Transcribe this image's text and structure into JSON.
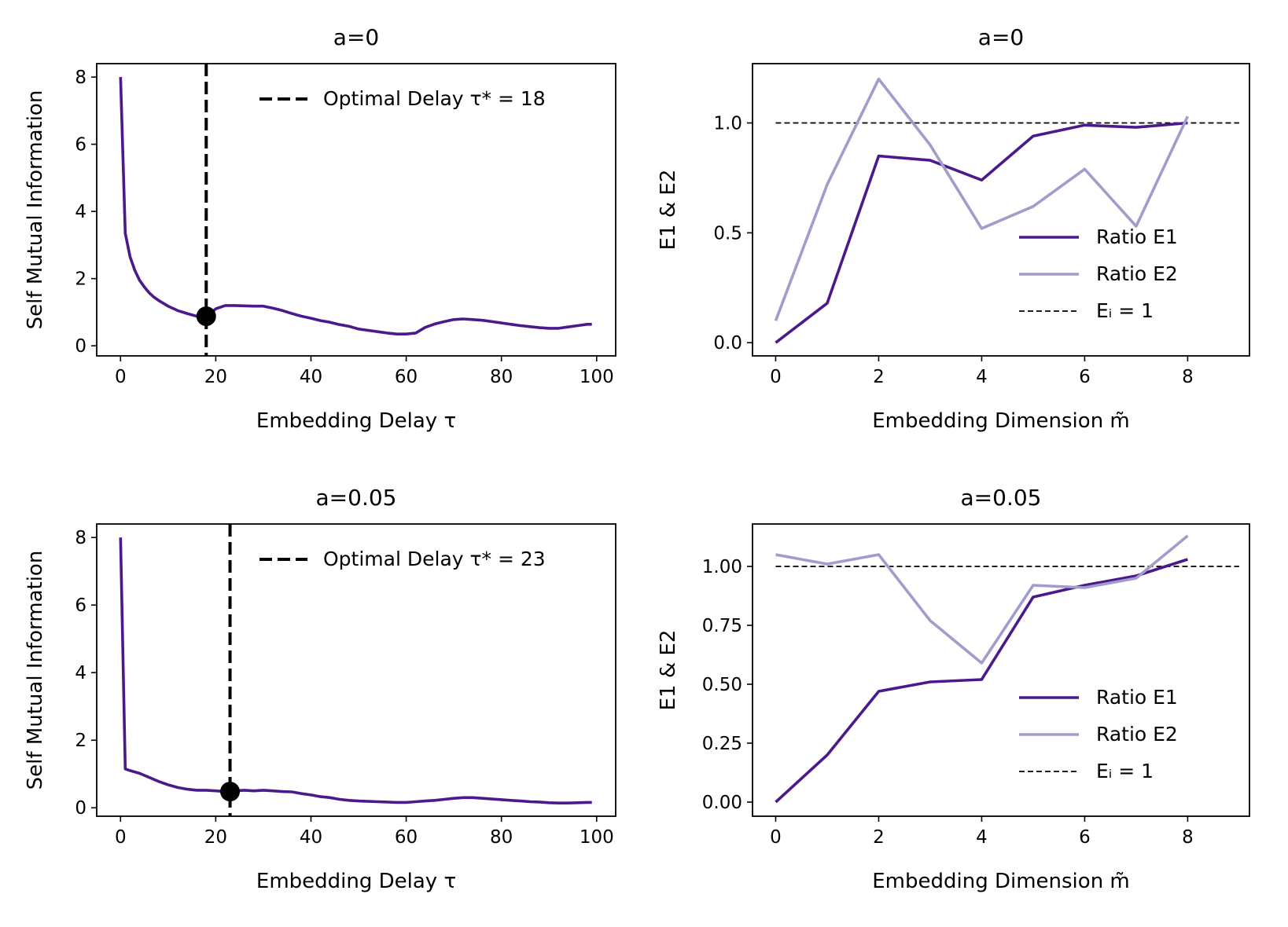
{
  "colors": {
    "e1": "#4a1a8c",
    "e2": "#a19ccb",
    "mi": "#4a1a8c",
    "ref": "#000000",
    "marker": "#000000"
  },
  "chart_data": [
    {
      "type": "line",
      "title": "a=0",
      "xlabel": "Embedding Delay τ",
      "ylabel": "Self Mutual Information",
      "xlim": [
        -5,
        104
      ],
      "ylim": [
        -0.3,
        8.4
      ],
      "xticks": [
        0,
        20,
        40,
        60,
        80,
        100
      ],
      "yticks": [
        0,
        2,
        4,
        6,
        8
      ],
      "series": [
        {
          "name": "",
          "x": [
            0,
            1,
            2,
            3,
            4,
            5,
            6,
            7,
            8,
            10,
            12,
            14,
            16,
            18,
            20,
            22,
            24,
            26,
            28,
            30,
            32,
            34,
            36,
            38,
            40,
            42,
            44,
            46,
            48,
            50,
            52,
            54,
            56,
            58,
            60,
            62,
            64,
            66,
            68,
            70,
            72,
            74,
            76,
            78,
            80,
            82,
            84,
            86,
            88,
            90,
            92,
            94,
            96,
            98,
            99
          ],
          "values": [
            8.0,
            3.35,
            2.65,
            2.25,
            1.95,
            1.75,
            1.58,
            1.45,
            1.35,
            1.18,
            1.05,
            0.96,
            0.88,
            0.85,
            1.1,
            1.2,
            1.2,
            1.19,
            1.18,
            1.18,
            1.12,
            1.05,
            0.96,
            0.88,
            0.82,
            0.75,
            0.7,
            0.63,
            0.58,
            0.5,
            0.46,
            0.42,
            0.38,
            0.35,
            0.35,
            0.38,
            0.55,
            0.65,
            0.72,
            0.78,
            0.8,
            0.78,
            0.76,
            0.72,
            0.68,
            0.64,
            0.6,
            0.57,
            0.54,
            0.52,
            0.52,
            0.56,
            0.6,
            0.64,
            0.64
          ]
        }
      ],
      "vline": {
        "x": 18,
        "label": "Optimal Delay τ* = 18"
      },
      "marker": {
        "x": 18,
        "y": 0.88
      },
      "legend": [
        {
          "label": "Optimal Delay τ* = 18",
          "style": "dashed-thick"
        }
      ],
      "legend_position": "top-right"
    },
    {
      "type": "line",
      "title": "a=0",
      "xlabel": "Embedding Dimension m̃",
      "ylabel": "E1 & E2",
      "xlim": [
        -0.45,
        9.2
      ],
      "ylim": [
        -0.06,
        1.27
      ],
      "xticks": [
        0,
        2,
        4,
        6,
        8
      ],
      "yticks": [
        0.0,
        0.5,
        1.0
      ],
      "ytick_labels": [
        "0.0",
        "0.5",
        "1.0"
      ],
      "series": [
        {
          "name": "Ratio E1",
          "x": [
            0,
            1,
            2,
            3,
            4,
            5,
            6,
            7,
            8
          ],
          "values": [
            0.0,
            0.18,
            0.85,
            0.83,
            0.74,
            0.94,
            0.99,
            0.98,
            1.0
          ]
        },
        {
          "name": "Ratio E2",
          "x": [
            0,
            1,
            2,
            3,
            4,
            5,
            6,
            7,
            8
          ],
          "values": [
            0.1,
            0.72,
            1.2,
            0.9,
            0.52,
            0.62,
            0.79,
            0.53,
            1.03
          ]
        }
      ],
      "hline": {
        "y": 1.0,
        "x_range": [
          0,
          9
        ]
      },
      "legend": [
        {
          "label": "Ratio E1",
          "style": "e1"
        },
        {
          "label": "Ratio E2",
          "style": "e2"
        },
        {
          "label": "Eᵢ = 1",
          "style": "dashed-thin"
        }
      ],
      "legend_position": "lower-right"
    },
    {
      "type": "line",
      "title": "a=0.05",
      "xlabel": "Embedding Delay τ",
      "ylabel": "Self Mutual Information",
      "xlim": [
        -5,
        104
      ],
      "ylim": [
        -0.25,
        8.4
      ],
      "xticks": [
        0,
        20,
        40,
        60,
        80,
        100
      ],
      "yticks": [
        0,
        2,
        4,
        6,
        8
      ],
      "series": [
        {
          "name": "",
          "x": [
            0,
            1,
            2,
            4,
            6,
            8,
            10,
            12,
            14,
            16,
            18,
            20,
            22,
            24,
            26,
            28,
            30,
            32,
            34,
            36,
            38,
            40,
            42,
            44,
            46,
            48,
            50,
            52,
            54,
            56,
            58,
            60,
            62,
            64,
            66,
            68,
            70,
            72,
            74,
            76,
            78,
            80,
            82,
            84,
            86,
            88,
            90,
            92,
            94,
            96,
            98,
            99
          ],
          "values": [
            8.0,
            1.15,
            1.1,
            1.02,
            0.9,
            0.78,
            0.68,
            0.6,
            0.55,
            0.52,
            0.52,
            0.5,
            0.48,
            0.5,
            0.52,
            0.5,
            0.52,
            0.5,
            0.48,
            0.47,
            0.42,
            0.38,
            0.33,
            0.3,
            0.25,
            0.22,
            0.2,
            0.19,
            0.18,
            0.17,
            0.16,
            0.16,
            0.18,
            0.2,
            0.22,
            0.25,
            0.28,
            0.3,
            0.3,
            0.28,
            0.26,
            0.24,
            0.22,
            0.2,
            0.18,
            0.17,
            0.15,
            0.14,
            0.14,
            0.15,
            0.16,
            0.16
          ]
        }
      ],
      "vline": {
        "x": 23,
        "label": "Optimal Delay τ* = 23"
      },
      "marker": {
        "x": 23,
        "y": 0.48
      },
      "legend": [
        {
          "label": "Optimal Delay τ* = 23",
          "style": "dashed-thick"
        }
      ],
      "legend_position": "top-right"
    },
    {
      "type": "line",
      "title": "a=0.05",
      "xlabel": "Embedding Dimension m̃",
      "ylabel": "E1 & E2",
      "xlim": [
        -0.45,
        9.2
      ],
      "ylim": [
        -0.06,
        1.18
      ],
      "xticks": [
        0,
        2,
        4,
        6,
        8
      ],
      "yticks": [
        0.0,
        0.25,
        0.5,
        0.75,
        1.0
      ],
      "ytick_labels": [
        "0.00",
        "0.25",
        "0.50",
        "0.75",
        "1.00"
      ],
      "series": [
        {
          "name": "Ratio E1",
          "x": [
            0,
            1,
            2,
            3,
            4,
            5,
            6,
            7,
            8
          ],
          "values": [
            0.0,
            0.2,
            0.47,
            0.51,
            0.52,
            0.87,
            0.92,
            0.96,
            1.03
          ]
        },
        {
          "name": "Ratio E2",
          "x": [
            0,
            1,
            2,
            3,
            4,
            5,
            6,
            7,
            8
          ],
          "values": [
            1.05,
            1.01,
            1.05,
            0.77,
            0.59,
            0.92,
            0.91,
            0.95,
            1.13
          ]
        }
      ],
      "hline": {
        "y": 1.0,
        "x_range": [
          0,
          9
        ]
      },
      "legend": [
        {
          "label": "Ratio E1",
          "style": "e1"
        },
        {
          "label": "Ratio E2",
          "style": "e2"
        },
        {
          "label": "Eᵢ = 1",
          "style": "dashed-thin"
        }
      ],
      "legend_position": "lower-right"
    }
  ]
}
